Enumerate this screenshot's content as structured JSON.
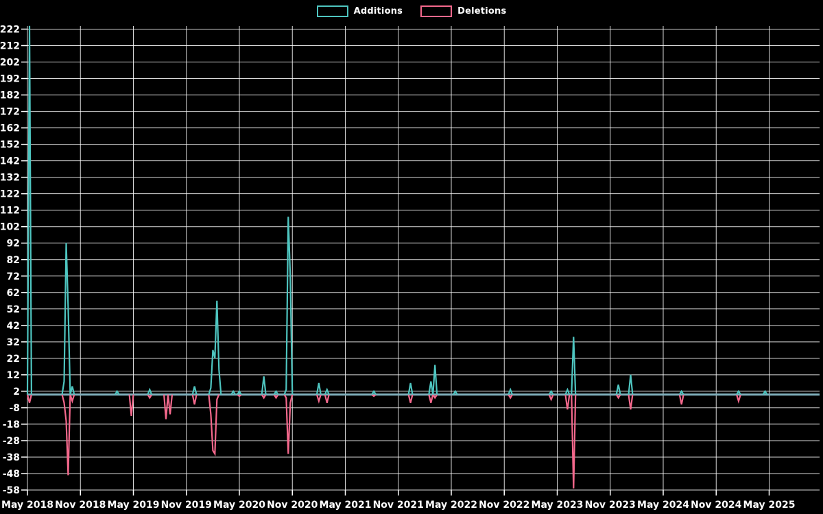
{
  "legend": {
    "items": [
      {
        "label": "Additions",
        "color": "#4ec5c0"
      },
      {
        "label": "Deletions",
        "color": "#f4688c"
      }
    ]
  },
  "chart_data": {
    "type": "line",
    "title": "",
    "xlabel": "",
    "ylabel": "",
    "background_color": "#000000",
    "grid": "on",
    "grid_color": "#ffffff",
    "text_color": "#ffffff",
    "baseline_overlap_color": "#7fafbc",
    "legend_position": "top-center",
    "y_axis": {
      "min": -58,
      "max": 222,
      "step": 10,
      "ticks": [
        222,
        212,
        202,
        192,
        182,
        172,
        162,
        152,
        142,
        132,
        122,
        112,
        102,
        92,
        82,
        72,
        62,
        52,
        42,
        32,
        22,
        12,
        2,
        -8,
        -18,
        -28,
        -38,
        -48,
        -58
      ]
    },
    "x_axis": {
      "tick_labels": [
        "May 2018",
        "Nov 2018",
        "May 2019",
        "Nov 2019",
        "May 2020",
        "Nov 2020",
        "May 2021",
        "Nov 2021",
        "May 2022",
        "Nov 2022",
        "May 2023",
        "Nov 2023",
        "May 2024",
        "Nov 2024",
        "May 2025"
      ],
      "weeks_per_tick_interval": 26,
      "total_weeks": 388
    },
    "series": [
      {
        "name": "Additions",
        "color": "#4ec5c0",
        "baseline_value": 0
      },
      {
        "name": "Deletions",
        "color": "#f4688c",
        "baseline_value": 0
      }
    ],
    "note": "Weekly code-frequency data; weeks not listed below are 0 additions and 0 deletions.",
    "weekly_events": [
      {
        "week": 1,
        "additions": 224,
        "deletions": -5
      },
      {
        "week": 18,
        "additions": 8,
        "deletions": -5
      },
      {
        "week": 19,
        "additions": 92,
        "deletions": -16
      },
      {
        "week": 20,
        "additions": 53,
        "deletions": -49
      },
      {
        "week": 22,
        "additions": 5,
        "deletions": -4
      },
      {
        "week": 44,
        "additions": 2,
        "deletions": 0
      },
      {
        "week": 51,
        "additions": 0,
        "deletions": -13
      },
      {
        "week": 60,
        "additions": 3,
        "deletions": -2
      },
      {
        "week": 68,
        "additions": 0,
        "deletions": -15
      },
      {
        "week": 70,
        "additions": 0,
        "deletions": -12
      },
      {
        "week": 82,
        "additions": 5,
        "deletions": -6
      },
      {
        "week": 90,
        "additions": 4,
        "deletions": -12
      },
      {
        "week": 91,
        "additions": 27,
        "deletions": -34
      },
      {
        "week": 92,
        "additions": 22,
        "deletions": -36
      },
      {
        "week": 93,
        "additions": 57,
        "deletions": -3
      },
      {
        "week": 94,
        "additions": 15,
        "deletions": 0
      },
      {
        "week": 101,
        "additions": 2,
        "deletions": 0
      },
      {
        "week": 104,
        "additions": 2,
        "deletions": -1
      },
      {
        "week": 116,
        "additions": 11,
        "deletions": -2
      },
      {
        "week": 122,
        "additions": 2,
        "deletions": -2
      },
      {
        "week": 127,
        "additions": 3,
        "deletions": -2
      },
      {
        "week": 128,
        "additions": 108,
        "deletions": -36
      },
      {
        "week": 129,
        "additions": 71,
        "deletions": -5
      },
      {
        "week": 143,
        "additions": 7,
        "deletions": -4
      },
      {
        "week": 147,
        "additions": 3,
        "deletions": -5
      },
      {
        "week": 170,
        "additions": 2,
        "deletions": -1
      },
      {
        "week": 188,
        "additions": 7,
        "deletions": -5
      },
      {
        "week": 198,
        "additions": 8,
        "deletions": -5
      },
      {
        "week": 200,
        "additions": 18,
        "deletions": -2
      },
      {
        "week": 210,
        "additions": 2,
        "deletions": 0
      },
      {
        "week": 237,
        "additions": 3,
        "deletions": -2
      },
      {
        "week": 257,
        "additions": 2,
        "deletions": -3
      },
      {
        "week": 265,
        "additions": 3,
        "deletions": -9
      },
      {
        "week": 268,
        "additions": 35,
        "deletions": -57
      },
      {
        "week": 290,
        "additions": 6,
        "deletions": -2
      },
      {
        "week": 296,
        "additions": 12,
        "deletions": -9
      },
      {
        "week": 321,
        "additions": 2,
        "deletions": -6
      },
      {
        "week": 349,
        "additions": 2,
        "deletions": -4
      },
      {
        "week": 362,
        "additions": 2,
        "deletions": 0
      }
    ]
  }
}
